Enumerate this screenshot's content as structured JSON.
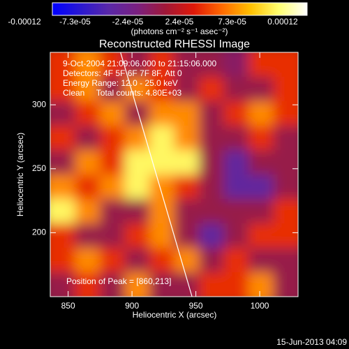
{
  "chart_data": {
    "type": "heatmap",
    "title": "Reconstructed RHESSI Image",
    "colorbar_label": "(photons cm⁻² s⁻¹ asec⁻²)",
    "colorbar_ticks": [
      -0.00012,
      {
        "value": -7.3e-05,
        "label": "-7.3e-05"
      },
      {
        "value": -2.4e-05,
        "label": "-2.4e-05"
      },
      {
        "value": 2.4e-05,
        "label": "2.4e-05"
      },
      {
        "value": 7.3e-05,
        "label": "7.3e-05"
      },
      0.00012
    ],
    "clim": [
      -0.00012,
      0.00012
    ],
    "colormap": [
      "#0000ff",
      "#2a18d0",
      "#5a28a8",
      "#7a2080",
      "#a01838",
      "#e01808",
      "#ff6a00",
      "#ffc000",
      "#ffff70",
      "#ffffff"
    ],
    "annotations": [
      "9-Oct-2004 21:09:06.000 to 21:15:06.000",
      "Detectors: 4F 5F 6F 7F 8F, Att 0",
      "Energy Range: 12.0 - 25.0 keV",
      "Clean     Total counts: 4.80E+03"
    ],
    "peak_label": "Position of Peak = [860,213]",
    "xlabel": "Heliocentric X (arcsec)",
    "ylabel": "Heliocentric Y (arcsec)",
    "footer": "15-Jun-2013 04:09",
    "xlim": [
      836,
      1030
    ],
    "ylim": [
      150,
      341
    ],
    "xticks": [
      850,
      900,
      950,
      1000
    ],
    "yticks": [
      200,
      250,
      300
    ],
    "z": [
      [
        2e-05,
        5e-05,
        2e-05,
        -2e-05,
        2e-05,
        -2e-05,
        -2e-05,
        -3e-05,
        2e-05,
        2e-05
      ],
      [
        2e-05,
        5e-05,
        -2e-05,
        5e-05,
        2e-05,
        -2e-05,
        2e-05,
        -2e-05,
        -2e-05,
        2e-05
      ],
      [
        -2e-05,
        2e-05,
        5e-05,
        -2e-05,
        5e-05,
        5e-05,
        -2e-05,
        2e-05,
        5e-05,
        2e-05
      ],
      [
        2e-05,
        -2e-05,
        2e-05,
        5e-05,
        9e-05,
        5e-05,
        -2e-05,
        -2e-05,
        2e-05,
        -2e-05
      ],
      [
        -2e-05,
        5e-05,
        2e-05,
        9e-05,
        9e-05,
        9e-05,
        -2e-05,
        -6e-05,
        -2e-05,
        -2e-05
      ],
      [
        5e-05,
        2e-05,
        5e-05,
        9e-05,
        5e-05,
        2e-05,
        -2e-05,
        -6e-05,
        -6e-05,
        -2e-05
      ],
      [
        9e-05,
        5e-05,
        -2e-05,
        -2e-05,
        5e-05,
        -2e-05,
        -2e-05,
        -2e-05,
        -2e-05,
        2e-05
      ],
      [
        2e-05,
        -2e-05,
        -2e-05,
        2e-05,
        5e-05,
        -2e-05,
        -6e-05,
        -2e-05,
        2e-05,
        2e-05
      ],
      [
        2e-05,
        5e-05,
        2e-05,
        -2e-05,
        2e-05,
        5e-05,
        -2e-05,
        2e-05,
        -2e-05,
        -2e-05
      ],
      [
        -2e-05,
        2e-05,
        -2e-05,
        5e-05,
        -2e-05,
        -2e-05,
        2e-05,
        2e-05,
        5e-05,
        -2e-05
      ]
    ],
    "limb": {
      "color": "#ffffff",
      "x": [
        891,
        947
      ],
      "y": [
        341,
        150
      ]
    }
  }
}
